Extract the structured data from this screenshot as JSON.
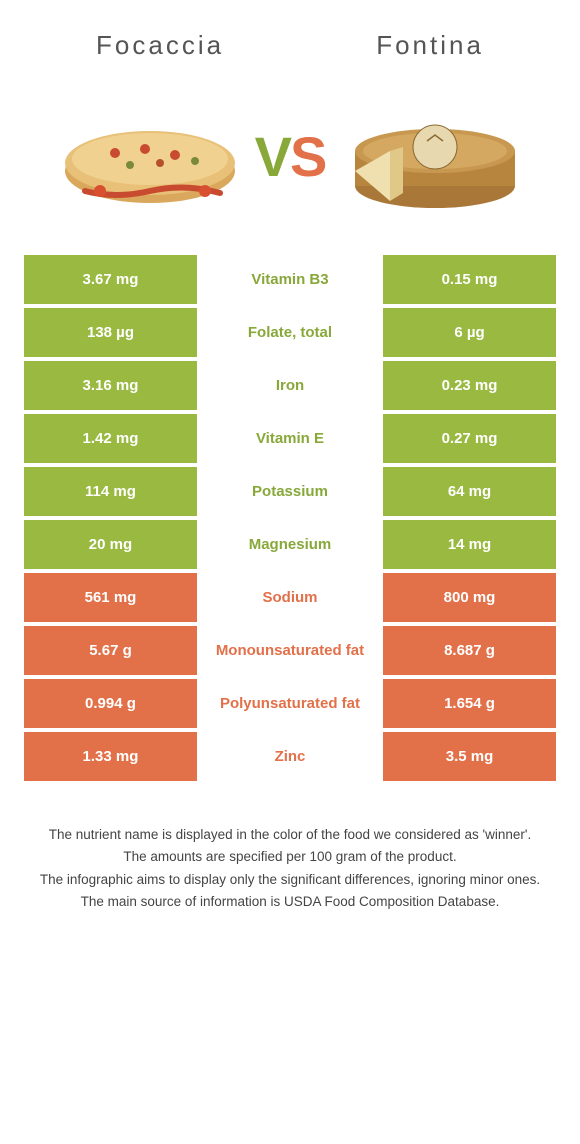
{
  "header": {
    "left_title": "Focaccia",
    "right_title": "Fontina"
  },
  "vs": {
    "v": "V",
    "s": "S"
  },
  "colors": {
    "green": "#99b940",
    "orange": "#e27049",
    "label_green": "#88a83a",
    "label_orange": "#e27049"
  },
  "rows": [
    {
      "left": "3.67 mg",
      "label": "Vitamin B3",
      "right": "0.15 mg",
      "winner": "left"
    },
    {
      "left": "138 µg",
      "label": "Folate, total",
      "right": "6 µg",
      "winner": "left"
    },
    {
      "left": "3.16 mg",
      "label": "Iron",
      "right": "0.23 mg",
      "winner": "left"
    },
    {
      "left": "1.42 mg",
      "label": "Vitamin E",
      "right": "0.27 mg",
      "winner": "left"
    },
    {
      "left": "114 mg",
      "label": "Potassium",
      "right": "64 mg",
      "winner": "left"
    },
    {
      "left": "20 mg",
      "label": "Magnesium",
      "right": "14 mg",
      "winner": "left"
    },
    {
      "left": "561 mg",
      "label": "Sodium",
      "right": "800 mg",
      "winner": "right"
    },
    {
      "left": "5.67 g",
      "label": "Monounsaturated fat",
      "right": "8.687 g",
      "winner": "right"
    },
    {
      "left": "0.994 g",
      "label": "Polyunsaturated fat",
      "right": "1.654 g",
      "winner": "right"
    },
    {
      "left": "1.33 mg",
      "label": "Zinc",
      "right": "3.5 mg",
      "winner": "right"
    }
  ],
  "footer": {
    "line1": "The nutrient name is displayed in the color of the food we considered as 'winner'.",
    "line2": "The amounts are specified per 100 gram of the product.",
    "line3": "The infographic aims to display only the significant differences, ignoring minor ones.",
    "line4": "The main source of information is USDA Food Composition Database."
  }
}
